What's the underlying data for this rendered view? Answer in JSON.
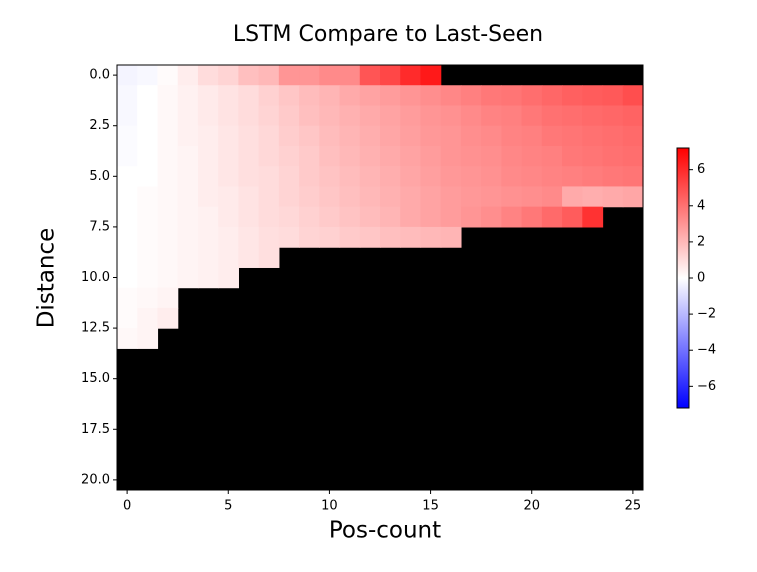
{
  "chart_data": {
    "type": "heatmap",
    "title": "LSTM Compare to Last-Seen",
    "x_label": "Pos-count",
    "y_label": "Distance",
    "x": [
      0,
      1,
      2,
      3,
      4,
      5,
      6,
      7,
      8,
      9,
      10,
      11,
      12,
      13,
      14,
      15,
      16,
      17,
      18,
      19,
      20,
      21,
      22,
      23,
      24,
      25
    ],
    "y": [
      0,
      1,
      2,
      3,
      4,
      5,
      6,
      7,
      8,
      9,
      10,
      11,
      12,
      13,
      14,
      15,
      16,
      17,
      18,
      19,
      20
    ],
    "values": [
      [
        -0.3,
        -0.2,
        0.1,
        0.5,
        1,
        1.2,
        1.8,
        2,
        3,
        3,
        3.3,
        3.3,
        4.8,
        5.2,
        6,
        6.5,
        null,
        null,
        null,
        null,
        null,
        null,
        null,
        null,
        null,
        null
      ],
      [
        -0.2,
        0,
        0.2,
        0.4,
        0.6,
        0.8,
        1,
        1.3,
        1.6,
        1.9,
        2.1,
        2.4,
        2.6,
        2.8,
        3,
        3.2,
        3.4,
        3.6,
        3.8,
        3.9,
        4.1,
        4.3,
        4.5,
        4.6,
        4.7,
        5
      ],
      [
        -0.2,
        0,
        0.2,
        0.4,
        0.6,
        0.8,
        1,
        1.2,
        1.5,
        1.8,
        2,
        2.2,
        2.4,
        2.6,
        2.8,
        3,
        3.1,
        3.3,
        3.5,
        3.6,
        3.8,
        4,
        4.1,
        4.2,
        4.3,
        4.4
      ],
      [
        -0.1,
        0,
        0.2,
        0.4,
        0.5,
        0.7,
        0.9,
        1.1,
        1.4,
        1.6,
        1.9,
        2.1,
        2.3,
        2.5,
        2.7,
        2.9,
        3,
        3.2,
        3.3,
        3.5,
        3.6,
        3.8,
        3.9,
        4,
        4.1,
        4.2
      ],
      [
        -0.1,
        0,
        0.2,
        0.3,
        0.5,
        0.7,
        0.9,
        1.1,
        1.3,
        1.5,
        1.8,
        2,
        2.2,
        2.4,
        2.6,
        2.8,
        3,
        3.1,
        3.2,
        3.4,
        3.5,
        3.6,
        3.8,
        3.9,
        4,
        4.1
      ],
      [
        0,
        0,
        0.2,
        0.3,
        0.5,
        0.7,
        0.9,
        1,
        1.2,
        1.5,
        1.7,
        1.9,
        2.1,
        2.3,
        2.5,
        2.7,
        2.9,
        3,
        3.1,
        3.3,
        3.4,
        3.5,
        3.6,
        3.7,
        3.8,
        3.9
      ],
      [
        0,
        0.1,
        0.2,
        0.3,
        0.5,
        0.6,
        0.8,
        1,
        1.2,
        1.4,
        1.6,
        1.8,
        2,
        2.2,
        2.4,
        2.6,
        2.8,
        2.9,
        3,
        3.1,
        3.2,
        3.3,
        2.4,
        2.3,
        2.4,
        2.5
      ],
      [
        0,
        0.1,
        0.2,
        0.3,
        0.4,
        0.6,
        0.8,
        1,
        1.1,
        1.3,
        1.5,
        1.7,
        1.9,
        2.1,
        2.4,
        2.6,
        2.8,
        3,
        3.2,
        3.5,
        3.8,
        4.2,
        4.6,
        5.8,
        null,
        null
      ],
      [
        0,
        0.1,
        0.2,
        0.3,
        0.4,
        0.5,
        0.7,
        0.9,
        1,
        1.2,
        1.3,
        1.5,
        1.6,
        1.8,
        1.9,
        2,
        2.1,
        null,
        null,
        null,
        null,
        null,
        null,
        null,
        null,
        null
      ],
      [
        0,
        0.1,
        0.2,
        0.3,
        0.4,
        0.5,
        0.7,
        0.9,
        null,
        null,
        null,
        null,
        null,
        null,
        null,
        null,
        null,
        null,
        null,
        null,
        null,
        null,
        null,
        null,
        null,
        null
      ],
      [
        0,
        0.1,
        0.2,
        0.3,
        0.4,
        0.5,
        null,
        null,
        null,
        null,
        null,
        null,
        null,
        null,
        null,
        null,
        null,
        null,
        null,
        null,
        null,
        null,
        null,
        null,
        null,
        null
      ],
      [
        0.1,
        0.2,
        0.3,
        null,
        null,
        null,
        null,
        null,
        null,
        null,
        null,
        null,
        null,
        null,
        null,
        null,
        null,
        null,
        null,
        null,
        null,
        null,
        null,
        null,
        null,
        null
      ],
      [
        0.1,
        0.3,
        0.5,
        null,
        null,
        null,
        null,
        null,
        null,
        null,
        null,
        null,
        null,
        null,
        null,
        null,
        null,
        null,
        null,
        null,
        null,
        null,
        null,
        null,
        null,
        null
      ],
      [
        0.2,
        0.3,
        null,
        null,
        null,
        null,
        null,
        null,
        null,
        null,
        null,
        null,
        null,
        null,
        null,
        null,
        null,
        null,
        null,
        null,
        null,
        null,
        null,
        null,
        null,
        null
      ],
      [
        null,
        null,
        null,
        null,
        null,
        null,
        null,
        null,
        null,
        null,
        null,
        null,
        null,
        null,
        null,
        null,
        null,
        null,
        null,
        null,
        null,
        null,
        null,
        null,
        null,
        null
      ],
      [
        null,
        null,
        null,
        null,
        null,
        null,
        null,
        null,
        null,
        null,
        null,
        null,
        null,
        null,
        null,
        null,
        null,
        null,
        null,
        null,
        null,
        null,
        null,
        null,
        null,
        null
      ],
      [
        null,
        null,
        null,
        null,
        null,
        null,
        null,
        null,
        null,
        null,
        null,
        null,
        null,
        null,
        null,
        null,
        null,
        null,
        null,
        null,
        null,
        null,
        null,
        null,
        null,
        null
      ],
      [
        null,
        null,
        null,
        null,
        null,
        null,
        null,
        null,
        null,
        null,
        null,
        null,
        null,
        null,
        null,
        null,
        null,
        null,
        null,
        null,
        null,
        null,
        null,
        null,
        null,
        null
      ],
      [
        null,
        null,
        null,
        null,
        null,
        null,
        null,
        null,
        null,
        null,
        null,
        null,
        null,
        null,
        null,
        null,
        null,
        null,
        null,
        null,
        null,
        null,
        null,
        null,
        null,
        null
      ],
      [
        null,
        null,
        null,
        null,
        null,
        null,
        null,
        null,
        null,
        null,
        null,
        null,
        null,
        null,
        null,
        null,
        null,
        null,
        null,
        null,
        null,
        null,
        null,
        null,
        null,
        null
      ],
      [
        null,
        null,
        null,
        null,
        null,
        null,
        null,
        null,
        null,
        null,
        null,
        null,
        null,
        null,
        null,
        null,
        null,
        null,
        null,
        null,
        null,
        null,
        null,
        null,
        null,
        null
      ]
    ],
    "colormap": "bwr",
    "mask_color": "#000000",
    "xlim": [
      -0.5,
      25.5
    ],
    "ylim": [
      20.5,
      -0.5
    ],
    "xticks": [
      0,
      5,
      10,
      15,
      20,
      25
    ],
    "yticks": [
      {
        "value": 0,
        "label": "0.0"
      },
      {
        "value": 2.5,
        "label": "2.5"
      },
      {
        "value": 5,
        "label": "5.0"
      },
      {
        "value": 7.5,
        "label": "7.5"
      },
      {
        "value": 10,
        "label": "10.0"
      },
      {
        "value": 12.5,
        "label": "12.5"
      },
      {
        "value": 15,
        "label": "15.0"
      },
      {
        "value": 17.5,
        "label": "17.5"
      },
      {
        "value": 20,
        "label": "20.0"
      }
    ],
    "clim": [
      -7.2,
      7.2
    ],
    "cbar_ticks": [
      6,
      4,
      2,
      0,
      {
        "value": -2,
        "label": "−2"
      },
      {
        "value": -4,
        "label": "−4"
      },
      {
        "value": -6,
        "label": "−6"
      }
    ]
  }
}
